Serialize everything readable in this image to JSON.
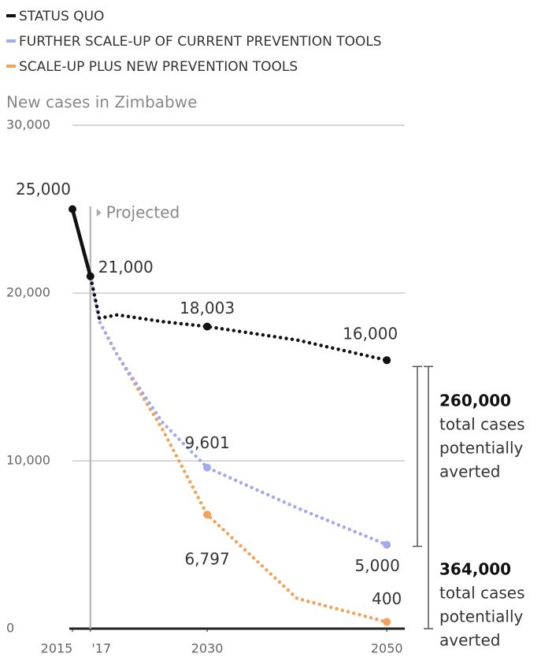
{
  "chart_data": {
    "type": "line",
    "y_label": "New cases in Zimbabwe",
    "annotation": "Projected",
    "projection_start": 2017,
    "xlim": [
      2015,
      2052
    ],
    "ylim": [
      0,
      30000
    ],
    "xticks": [
      2015,
      {
        "value": 2017,
        "label": "'17"
      },
      2030,
      2050
    ],
    "yticks": [
      {
        "value": 0,
        "label": "0"
      },
      {
        "value": 10000,
        "label": "10,000"
      },
      {
        "value": 20000,
        "label": "20,000"
      },
      {
        "value": 30000,
        "label": "30,000"
      }
    ],
    "grid": true,
    "series": [
      {
        "name": "STATUS QUO",
        "color": "#111111",
        "x": [
          2015,
          2017,
          2018,
          2020,
          2025,
          2030,
          2040,
          2050
        ],
        "values": [
          25000,
          21000,
          18500,
          18700,
          18300,
          18003,
          17200,
          16000
        ],
        "value_labels": [
          "25,000",
          "21,000",
          null,
          null,
          null,
          "18,003",
          null,
          "16,000"
        ]
      },
      {
        "name": "FURTHER SCALE-UP OF CURRENT PREVENTION TOOLS",
        "color": "#a3aaea",
        "x": [
          2017,
          2018,
          2020,
          2025,
          2030,
          2040,
          2050
        ],
        "values": [
          21000,
          18300,
          16300,
          12300,
          9601,
          7200,
          5000
        ],
        "value_labels": [
          null,
          null,
          null,
          null,
          "9,601",
          null,
          "5,000"
        ]
      },
      {
        "name": "SCALE-UP PLUS NEW PREVENTION TOOLS",
        "color": "#f2a35a",
        "x": [
          2017,
          2018,
          2020,
          2025,
          2030,
          2040,
          2050
        ],
        "values": [
          21000,
          18300,
          16300,
          11900,
          6797,
          1800,
          400
        ],
        "value_labels": [
          null,
          null,
          null,
          null,
          "6,797",
          null,
          "400"
        ]
      }
    ],
    "brackets": [
      {
        "bold": "260,000",
        "lines": [
          "total cases",
          "potentially",
          "averted"
        ]
      },
      {
        "bold": "364,000",
        "lines": [
          "total cases",
          "potentially",
          "averted"
        ]
      }
    ]
  }
}
